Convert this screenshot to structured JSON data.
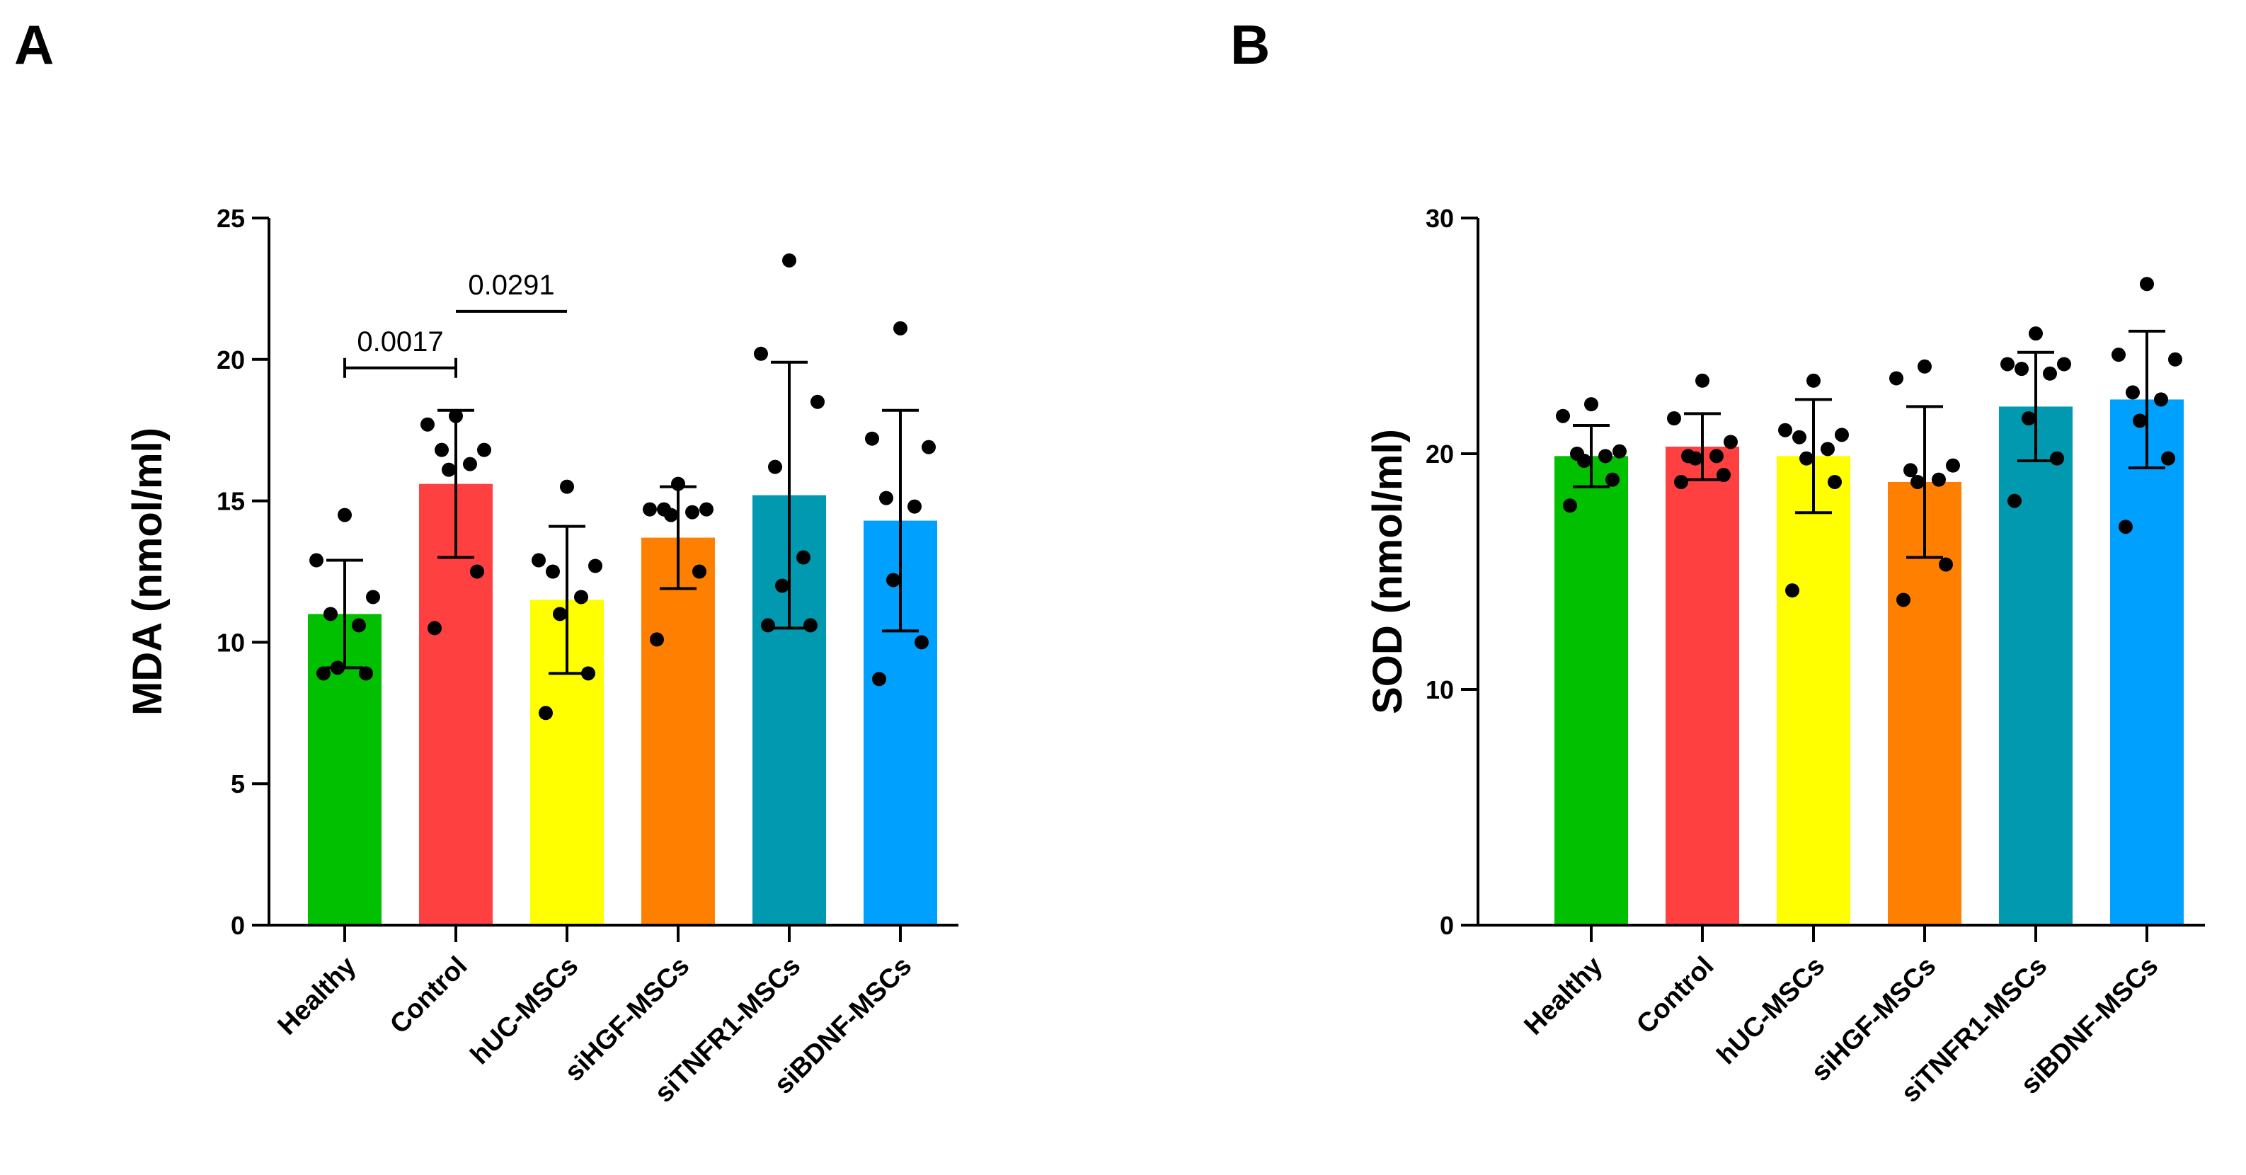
{
  "chart_data": [
    {
      "panel": "A",
      "type": "bar",
      "title": "",
      "xlabel": "",
      "ylabel": "MDA (nmol/ml)",
      "ylim": [
        0,
        25
      ],
      "yticks": [
        0,
        5,
        10,
        15,
        20,
        25
      ],
      "categories": [
        "Healthy",
        "Control",
        "hUC-MSCs",
        "siHGF-MSCs",
        "siTNFR1-MSCs",
        "siBDNF-MSCs"
      ],
      "colors": [
        "#00c000",
        "#ff4040",
        "#ffff00",
        "#ff8000",
        "#0099b0",
        "#00a0ff"
      ],
      "values": [
        11.0,
        15.6,
        11.5,
        13.7,
        15.2,
        14.3
      ],
      "error": [
        1.9,
        2.6,
        2.6,
        1.8,
        4.7,
        3.9
      ],
      "points": [
        [
          14.5,
          12.9,
          11.6,
          11.0,
          10.6,
          9.1,
          8.9,
          8.9
        ],
        [
          18.0,
          17.7,
          16.8,
          16.8,
          16.3,
          16.1,
          12.5,
          10.5
        ],
        [
          15.5,
          12.9,
          12.7,
          12.5,
          11.6,
          11.0,
          8.9,
          7.5
        ],
        [
          15.6,
          14.7,
          14.7,
          14.7,
          14.6,
          14.5,
          12.5,
          10.1
        ],
        [
          23.5,
          20.2,
          18.5,
          16.2,
          13.0,
          12.0,
          10.6,
          10.6
        ],
        [
          21.1,
          17.2,
          16.9,
          15.1,
          14.8,
          12.2,
          10.0,
          8.7
        ]
      ],
      "comparisons": [
        {
          "from": 0,
          "to": 1,
          "p": "0.0017"
        },
        {
          "from": 1,
          "to": 2,
          "p": "0.0291"
        }
      ]
    },
    {
      "panel": "B",
      "type": "bar",
      "title": "",
      "xlabel": "",
      "ylabel": "SOD (nmol/ml)",
      "ylim": [
        0,
        30
      ],
      "yticks": [
        0,
        10,
        20,
        30
      ],
      "categories": [
        "Healthy",
        "Control",
        "hUC-MSCs",
        "siHGF-MSCs",
        "siTNFR1-MSCs",
        "siBDNF-MSCs"
      ],
      "colors": [
        "#00c000",
        "#ff4040",
        "#ffff00",
        "#ff8000",
        "#0099b0",
        "#00a0ff"
      ],
      "values": [
        19.9,
        20.3,
        19.9,
        18.8,
        22.0,
        22.3
      ],
      "error": [
        1.3,
        1.4,
        2.4,
        3.2,
        2.3,
        2.9
      ],
      "points": [
        [
          22.1,
          21.6,
          20.1,
          20.0,
          19.9,
          19.7,
          18.9,
          17.8
        ],
        [
          23.1,
          21.5,
          20.5,
          19.9,
          19.9,
          19.8,
          19.1,
          18.8
        ],
        [
          23.1,
          21.0,
          20.8,
          20.7,
          20.2,
          19.8,
          18.8,
          14.2
        ],
        [
          23.7,
          23.2,
          19.5,
          19.3,
          18.9,
          18.8,
          15.3,
          13.8
        ],
        [
          25.1,
          23.8,
          23.8,
          23.6,
          23.4,
          21.5,
          19.8,
          18.0
        ],
        [
          27.2,
          24.2,
          24.0,
          22.6,
          22.3,
          21.4,
          19.8,
          16.9
        ]
      ],
      "comparisons": []
    }
  ]
}
